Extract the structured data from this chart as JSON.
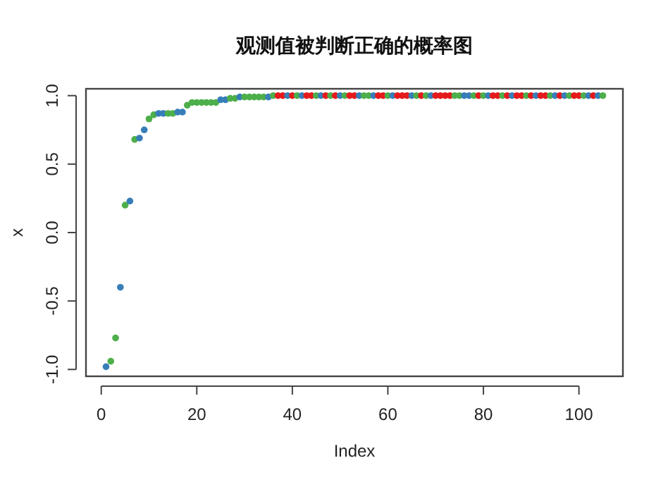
{
  "chart_data": {
    "type": "scatter",
    "title": "观测值被判断正确的概率图",
    "xlabel": "Index",
    "ylabel": "x",
    "marker": "circle",
    "grid": false,
    "xlim": [
      -3.2,
      109.2
    ],
    "ylim": [
      -1.05,
      1.05
    ],
    "xticks": [
      0,
      20,
      40,
      60,
      80,
      100
    ],
    "yticks": [
      {
        "value": -1,
        "label": "-1.0"
      },
      {
        "value": -0.5,
        "label": "-0.5"
      },
      {
        "value": 0,
        "label": "0.0"
      },
      {
        "value": 0.5,
        "label": "0.5"
      },
      {
        "value": 1,
        "label": "1.0"
      }
    ],
    "series": [
      {
        "x": [
          1,
          2,
          3,
          4,
          5,
          6,
          7,
          8,
          9,
          10,
          11,
          12,
          13,
          14,
          15,
          16,
          17,
          18,
          19,
          20,
          21,
          22,
          23,
          24,
          25,
          26,
          27,
          28,
          29,
          30,
          31,
          32,
          33,
          34,
          35,
          36,
          37,
          38,
          39,
          40,
          41,
          42,
          43,
          44,
          45,
          46,
          47,
          48,
          49,
          50,
          51,
          52,
          53,
          54,
          55,
          56,
          57,
          58,
          59,
          60,
          61,
          62,
          63,
          64,
          65,
          66,
          67,
          68,
          69,
          70,
          71,
          72,
          73,
          74,
          75,
          76,
          77,
          78,
          79,
          80,
          81,
          82,
          83,
          84,
          85,
          86,
          87,
          88,
          89,
          90,
          91,
          92,
          93,
          94,
          95,
          96,
          97,
          98,
          99,
          100,
          101,
          102,
          103,
          104,
          105
        ],
        "values": [
          -0.98,
          -0.94,
          -0.77,
          -0.4,
          0.2,
          0.23,
          0.68,
          0.69,
          0.75,
          0.83,
          0.86,
          0.87,
          0.87,
          0.87,
          0.87,
          0.88,
          0.88,
          0.93,
          0.95,
          0.95,
          0.95,
          0.95,
          0.95,
          0.95,
          0.97,
          0.97,
          0.98,
          0.98,
          0.99,
          0.99,
          0.99,
          0.99,
          0.99,
          0.99,
          0.99,
          1,
          1,
          1,
          1,
          1,
          1,
          1,
          1,
          1,
          1,
          1,
          1,
          1,
          1,
          1,
          1,
          1,
          1,
          1,
          1,
          1,
          1,
          1,
          1,
          1,
          1,
          1,
          1,
          1,
          1,
          1,
          1,
          1,
          1,
          1,
          1,
          1,
          1,
          1,
          1,
          1,
          1,
          1,
          1,
          1,
          1,
          1,
          1,
          1,
          1,
          1,
          1,
          1,
          1,
          1,
          1,
          1,
          1,
          1,
          1,
          1,
          1,
          1,
          1,
          1,
          1,
          1,
          1,
          1,
          1
        ],
        "colors": [
          "#377eb8",
          "#4daf4a",
          "#4daf4a",
          "#377eb8",
          "#4daf4a",
          "#377eb8",
          "#4daf4a",
          "#377eb8",
          "#377eb8",
          "#4daf4a",
          "#4daf4a",
          "#377eb8",
          "#377eb8",
          "#4daf4a",
          "#4daf4a",
          "#377eb8",
          "#377eb8",
          "#4daf4a",
          "#4daf4a",
          "#4daf4a",
          "#4daf4a",
          "#4daf4a",
          "#4daf4a",
          "#4daf4a",
          "#377eb8",
          "#377eb8",
          "#4daf4a",
          "#4daf4a",
          "#377eb8",
          "#4daf4a",
          "#4daf4a",
          "#4daf4a",
          "#4daf4a",
          "#4daf4a",
          "#377eb8",
          "#4daf4a",
          "#e41a1c",
          "#e41a1c",
          "#377eb8",
          "#e41a1c",
          "#4daf4a",
          "#377eb8",
          "#e41a1c",
          "#e41a1c",
          "#4daf4a",
          "#377eb8",
          "#e41a1c",
          "#4daf4a",
          "#e41a1c",
          "#377eb8",
          "#4daf4a",
          "#e41a1c",
          "#e41a1c",
          "#377eb8",
          "#4daf4a",
          "#4daf4a",
          "#377eb8",
          "#e41a1c",
          "#e41a1c",
          "#4daf4a",
          "#377eb8",
          "#e41a1c",
          "#e41a1c",
          "#e41a1c",
          "#377eb8",
          "#4daf4a",
          "#e41a1c",
          "#4daf4a",
          "#377eb8",
          "#e41a1c",
          "#e41a1c",
          "#e41a1c",
          "#e41a1c",
          "#4daf4a",
          "#4daf4a",
          "#377eb8",
          "#377eb8",
          "#4daf4a",
          "#e41a1c",
          "#4daf4a",
          "#377eb8",
          "#e41a1c",
          "#e41a1c",
          "#4daf4a",
          "#e41a1c",
          "#377eb8",
          "#e41a1c",
          "#e41a1c",
          "#4daf4a",
          "#e41a1c",
          "#377eb8",
          "#e41a1c",
          "#e41a1c",
          "#4daf4a",
          "#377eb8",
          "#e41a1c",
          "#377eb8",
          "#4daf4a",
          "#e41a1c",
          "#e41a1c",
          "#4daf4a",
          "#377eb8",
          "#e41a1c",
          "#377eb8",
          "#4daf4a"
        ]
      }
    ]
  }
}
